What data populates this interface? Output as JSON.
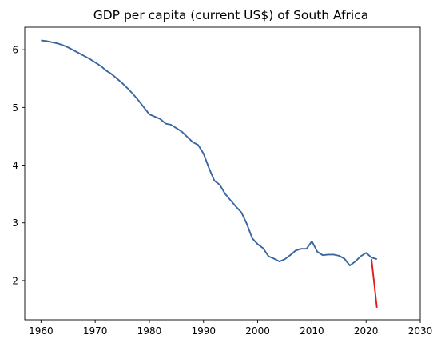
{
  "chart_data": {
    "type": "line",
    "title": "GDP per capita (current US$) of South Africa",
    "xlabel": "",
    "ylabel": "",
    "xlim": [
      1957,
      2030
    ],
    "ylim": [
      1.32,
      6.39
    ],
    "x_ticks": [
      1960,
      1970,
      1980,
      1990,
      2000,
      2010,
      2020,
      2030
    ],
    "y_ticks": [
      2,
      3,
      4,
      5,
      6
    ],
    "grid": false,
    "series": [
      {
        "color": "#3a67a0",
        "points": [
          [
            1960,
            6.16
          ],
          [
            1961,
            6.15
          ],
          [
            1962,
            6.13
          ],
          [
            1963,
            6.11
          ],
          [
            1964,
            6.08
          ],
          [
            1965,
            6.04
          ],
          [
            1966,
            5.99
          ],
          [
            1967,
            5.94
          ],
          [
            1968,
            5.89
          ],
          [
            1969,
            5.84
          ],
          [
            1970,
            5.78
          ],
          [
            1971,
            5.72
          ],
          [
            1972,
            5.64
          ],
          [
            1973,
            5.58
          ],
          [
            1974,
            5.5
          ],
          [
            1975,
            5.42
          ],
          [
            1976,
            5.33
          ],
          [
            1977,
            5.23
          ],
          [
            1978,
            5.12
          ],
          [
            1979,
            5.0
          ],
          [
            1980,
            4.88
          ],
          [
            1981,
            4.84
          ],
          [
            1982,
            4.8
          ],
          [
            1983,
            4.72
          ],
          [
            1984,
            4.7
          ],
          [
            1985,
            4.64
          ],
          [
            1986,
            4.58
          ],
          [
            1987,
            4.49
          ],
          [
            1988,
            4.4
          ],
          [
            1989,
            4.35
          ],
          [
            1990,
            4.2
          ],
          [
            1991,
            3.95
          ],
          [
            1992,
            3.73
          ],
          [
            1993,
            3.66
          ],
          [
            1994,
            3.5
          ],
          [
            1995,
            3.39
          ],
          [
            1996,
            3.28
          ],
          [
            1997,
            3.18
          ],
          [
            1998,
            2.98
          ],
          [
            1999,
            2.73
          ],
          [
            2000,
            2.63
          ],
          [
            2001,
            2.56
          ],
          [
            2002,
            2.42
          ],
          [
            2003,
            2.38
          ],
          [
            2004,
            2.33
          ],
          [
            2005,
            2.37
          ],
          [
            2006,
            2.44
          ],
          [
            2007,
            2.52
          ],
          [
            2008,
            2.55
          ],
          [
            2009,
            2.55
          ],
          [
            2010,
            2.68
          ],
          [
            2011,
            2.5
          ],
          [
            2012,
            2.44
          ],
          [
            2013,
            2.45
          ],
          [
            2014,
            2.45
          ],
          [
            2015,
            2.43
          ],
          [
            2016,
            2.38
          ],
          [
            2017,
            2.26
          ],
          [
            2018,
            2.33
          ],
          [
            2019,
            2.42
          ],
          [
            2020,
            2.48
          ],
          [
            2021,
            2.4
          ],
          [
            2022,
            2.37
          ]
        ]
      },
      {
        "color": "#e01b1b",
        "points": [
          [
            2021,
            2.37
          ],
          [
            2022,
            1.53
          ]
        ]
      }
    ]
  }
}
